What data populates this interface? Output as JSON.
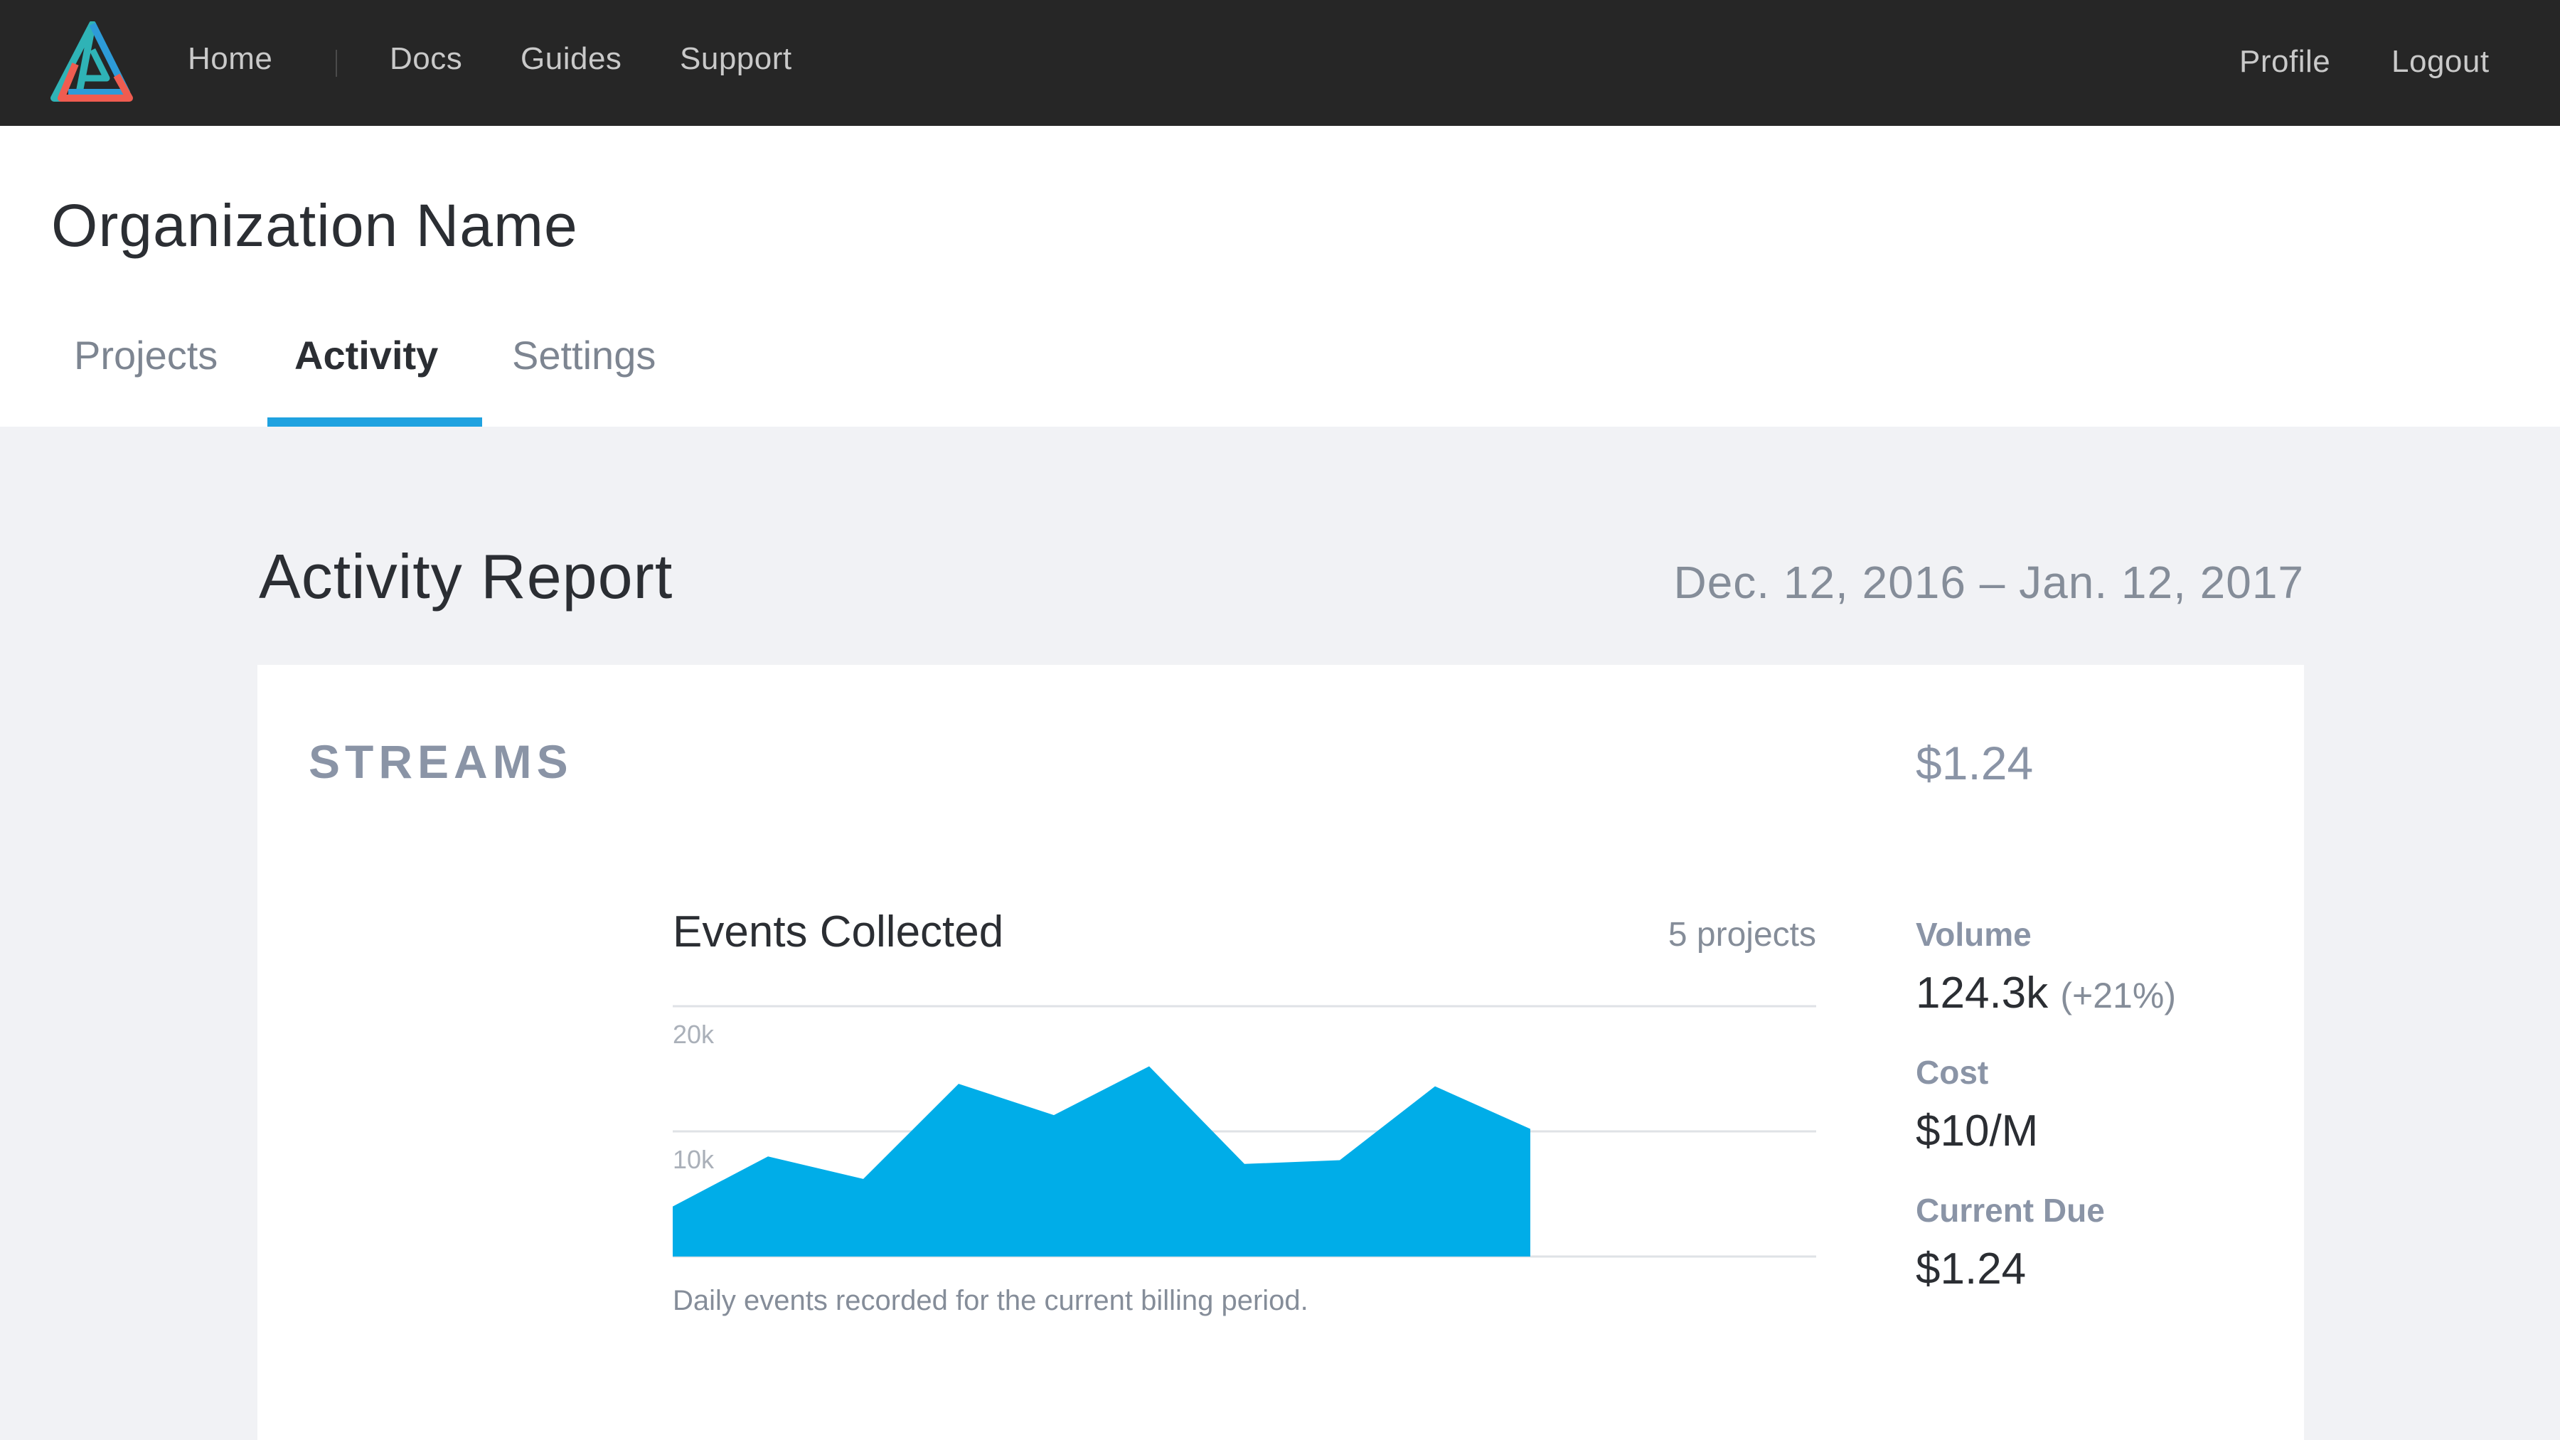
{
  "nav": {
    "home": "Home",
    "docs": "Docs",
    "guides": "Guides",
    "support": "Support",
    "profile": "Profile",
    "logout": "Logout",
    "logo_icon": "triangle-logo-icon"
  },
  "org": {
    "name": "Organization Name"
  },
  "tabs": [
    {
      "label": "Projects",
      "active": false
    },
    {
      "label": "Activity",
      "active": true
    },
    {
      "label": "Settings",
      "active": false
    }
  ],
  "report": {
    "title": "Activity Report",
    "date_range": "Dec. 12, 2016 – Jan. 12, 2017"
  },
  "streams": {
    "label": "STREAMS",
    "total": "$1.24",
    "chart_title": "Events Collected",
    "project_count": "5 projects",
    "caption": "Daily events recorded for the current billing period.",
    "stats": {
      "volume_label": "Volume",
      "volume_value": "124.3k",
      "volume_change": "(+21%)",
      "cost_label": "Cost",
      "cost_value": "$10/M",
      "due_label": "Current Due",
      "due_value": "$1.24"
    }
  },
  "colors": {
    "accent": "#1fa2e0",
    "area_fill": "#00ade8",
    "nav_bg": "#262626",
    "logo_teal": "#2fb3b6",
    "logo_coral": "#ef5c50",
    "logo_blue": "#2d9bd8"
  },
  "chart_data": {
    "type": "area",
    "title": "Events Collected",
    "y_ticks": [
      "20k",
      "10k"
    ],
    "ylim": [
      0,
      20000
    ],
    "x_days": [
      1,
      2,
      3,
      4,
      5,
      6,
      7,
      8,
      9,
      10
    ],
    "x_range": [
      1,
      13
    ],
    "values": [
      4000,
      8000,
      6200,
      13800,
      11300,
      15200,
      7400,
      7700,
      13600,
      10200
    ],
    "grid": true
  }
}
